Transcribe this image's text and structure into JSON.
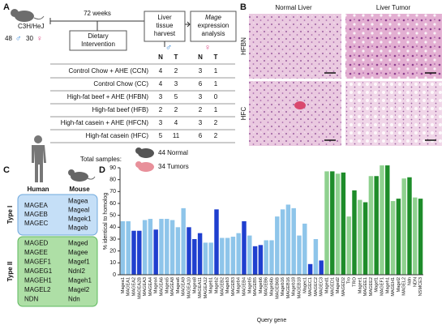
{
  "panel_a": {
    "label": "A",
    "strain": "C3H/HeJ",
    "males": "48",
    "male_symbol": "♂",
    "females": "30",
    "female_symbol": "♀",
    "duration": "72 weeks",
    "diet_box": [
      "Dietary",
      "Intervention"
    ],
    "harvest_box": [
      "Liver",
      "tissue",
      "harvest"
    ],
    "analysis_box": [
      "Mage",
      "expression",
      "analysis"
    ],
    "sex_headers": [
      "♂",
      "♀"
    ],
    "columns": [
      "N",
      "T",
      "N",
      "T"
    ],
    "rows": [
      {
        "name": "Control Chow + AHE (CCN)",
        "counts": [
          4,
          2,
          3,
          1
        ]
      },
      {
        "name": "Control Chow (CC)",
        "counts": [
          4,
          3,
          6,
          1
        ]
      },
      {
        "name": "High-fat beef + AHE (HFBN)",
        "counts": [
          3,
          5,
          3,
          0
        ]
      },
      {
        "name": "High-fat beef (HFB)",
        "counts": [
          2,
          2,
          2,
          1
        ]
      },
      {
        "name": "High-fat casein + AHE (HFCN)",
        "counts": [
          3,
          4,
          3,
          2
        ]
      },
      {
        "name": "High-fat casein (HFC)",
        "counts": [
          5,
          11,
          6,
          2
        ]
      }
    ],
    "total_label": "Total samples:",
    "normal": "44 Normal",
    "tumors": "34 Tumors"
  },
  "panel_b": {
    "label": "B",
    "columns": [
      "Normal Liver",
      "Liver Tumor"
    ],
    "rows": [
      "HFBN",
      "HFC"
    ]
  },
  "panel_c": {
    "label": "C",
    "species": [
      "Human",
      "Mouse"
    ],
    "groups": [
      {
        "name": "Type I",
        "human": [
          "MAGEA",
          "MAGEB",
          "MAGEC"
        ],
        "mouse": [
          "Magea",
          "Mageal",
          "Magek1",
          "Mageb"
        ]
      },
      {
        "name": "Type II",
        "human": [
          "MAGED",
          "MAGEE",
          "MAGEF1",
          "MAGEG1",
          "MAGEH1",
          "MAGEL2",
          "NDN"
        ],
        "mouse": [
          "Maged",
          "Magee",
          "Magef1",
          "Ndnl2",
          "Mageh1",
          "Magel2",
          "Ndn"
        ]
      }
    ]
  },
  "chart_data": {
    "type": "bar",
    "label": "D",
    "ylabel": "% identical to homolog",
    "xlabel": "Query gene",
    "categories": [
      "Magea1",
      "MAGEA1",
      "MAGEA2",
      "MAGEA2B",
      "MAGEA3",
      "MAGEA4",
      "Magea4",
      "MAGEA6",
      "Magea5",
      "MAGEA8",
      "Magea6",
      "MAGEA9",
      "MAGEA10",
      "Magea8",
      "MAGEA11",
      "MAGEA12",
      "Mageb1",
      "Mageb2",
      "MAGEB2",
      "Mageb3",
      "MAGEB3",
      "Mageb4",
      "MAGEB4",
      "Mageb5",
      "MAGEB5",
      "Mageb6",
      "MAGEB6",
      "Mageb6b",
      "MAGEB6B",
      "Mageb16",
      "MAGEB16",
      "Mageb18",
      "MAGEB18",
      "Magec1",
      "MAGEC1",
      "MAGEC2",
      "MAGEC3",
      "Maged1",
      "MAGED1",
      "Maged2",
      "MAGED2",
      "Tro",
      "TRO",
      "Magee1",
      "MAGEE1",
      "MAGEE2",
      "Magef1",
      "MAGEF1",
      "Mageh1",
      "MAGEH1",
      "Magel2",
      "MAGEL2",
      "Ndn",
      "NDN",
      "NSMCE3"
    ],
    "values": [
      45,
      45,
      37,
      37,
      46,
      47,
      38,
      47,
      47,
      46,
      40,
      56,
      40,
      30,
      35,
      27,
      27,
      55,
      31,
      31,
      32,
      35,
      45,
      33,
      24,
      25,
      29,
      29,
      49,
      55,
      59,
      56,
      33,
      43,
      9,
      30,
      12,
      87,
      87,
      85,
      86,
      49,
      71,
      63,
      61,
      83,
      83,
      92,
      92,
      62,
      64,
      81,
      82,
      65,
      64
    ],
    "colors": [
      "#8ec5ea",
      "#8ec5ea",
      "#1f3fcf",
      "#1f3fcf",
      "#8ec5ea",
      "#8ec5ea",
      "#1f3fcf",
      "#8ec5ea",
      "#8ec5ea",
      "#8ec5ea",
      "#8ec5ea",
      "#8ec5ea",
      "#1f3fcf",
      "#1f3fcf",
      "#1f3fcf",
      "#8ec5ea",
      "#8ec5ea",
      "#1f3fcf",
      "#8ec5ea",
      "#8ec5ea",
      "#8ec5ea",
      "#8ec5ea",
      "#1f3fcf",
      "#8ec5ea",
      "#1f3fcf",
      "#1f3fcf",
      "#8ec5ea",
      "#8ec5ea",
      "#8ec5ea",
      "#8ec5ea",
      "#8ec5ea",
      "#8ec5ea",
      "#8ec5ea",
      "#8ec5ea",
      "#1f3fcf",
      "#8ec5ea",
      "#1f3fcf",
      "#8fd18f",
      "#1e8c2a",
      "#8fd18f",
      "#1e8c2a",
      "#8fd18f",
      "#1e8c2a",
      "#8fd18f",
      "#1e8c2a",
      "#8fd18f",
      "#1e8c2a",
      "#8fd18f",
      "#1e8c2a",
      "#8fd18f",
      "#1e8c2a",
      "#8fd18f",
      "#1e8c2a",
      "#8fd18f",
      "#1e8c2a"
    ],
    "ylim": [
      0,
      90
    ],
    "yticks": [
      0,
      10,
      20,
      30,
      40,
      50,
      60,
      70,
      80,
      90
    ]
  }
}
